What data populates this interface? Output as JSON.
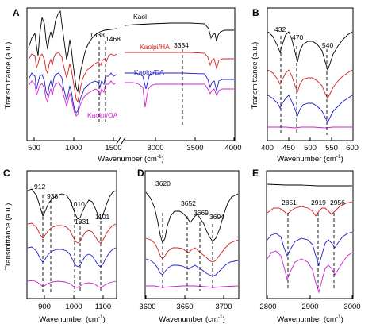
{
  "chart_data": [
    {
      "panel": "A",
      "type": "line",
      "ylabel": "Transmittance (a.u.)",
      "xlabel_main": "Wavenumber (cm",
      "xlabel_sup": "-1",
      "xlabel_close": ")",
      "x_ticks_left": [
        "500",
        "1000",
        "1500"
      ],
      "x_ticks_right": [
        "3000",
        "3500",
        "4000"
      ],
      "axis_break": true,
      "peaks": [
        {
          "x": 1388,
          "label": "1388"
        },
        {
          "x": 1468,
          "label": "1468"
        },
        {
          "x": 3334,
          "label": "3334"
        }
      ],
      "series": [
        {
          "name": "Kaol",
          "color": "#000000"
        },
        {
          "name": "Kaolpi/HA",
          "color": "#d42020"
        },
        {
          "name": "Kaolpi/DA",
          "color": "#2020c8"
        },
        {
          "name": "Kaolpi/OA",
          "color": "#d020d0"
        }
      ]
    },
    {
      "panel": "B",
      "type": "line",
      "xlim": [
        400,
        600
      ],
      "ylabel": "Transmittance (a.u.)",
      "xlabel_main": "Wavenumber (cm",
      "xlabel_sup": "-1",
      "xlabel_close": ")",
      "x_ticks": [
        "400",
        "450",
        "500",
        "550",
        "600"
      ],
      "peaks": [
        {
          "x": 432,
          "label": "432"
        },
        {
          "x": 470,
          "label": "470"
        },
        {
          "x": 540,
          "label": "540"
        }
      ]
    },
    {
      "panel": "C",
      "type": "line",
      "xlim": [
        850,
        1150
      ],
      "ylabel": "Transmittance (a.u.)",
      "xlabel_main": "Wavenumber (cm",
      "xlabel_sup": "-1",
      "xlabel_close": ")",
      "x_ticks": [
        "900",
        "1000",
        "1100"
      ],
      "peaks": [
        {
          "x": 912,
          "label": "912"
        },
        {
          "x": 938,
          "label": "938"
        },
        {
          "x": 1010,
          "label": "1010"
        },
        {
          "x": 1031,
          "label": "1031"
        },
        {
          "x": 1101,
          "label": "1101"
        }
      ]
    },
    {
      "panel": "D",
      "type": "line",
      "xlim": [
        3600,
        3720
      ],
      "xlabel_main": "Wavenumber (cm",
      "xlabel_sup": "-1",
      "xlabel_close": ")",
      "x_ticks": [
        "3600",
        "3650",
        "3700"
      ],
      "peaks": [
        {
          "x": 3620,
          "label": "3620"
        },
        {
          "x": 3652,
          "label": "3652"
        },
        {
          "x": 3669,
          "label": "3669"
        },
        {
          "x": 3694,
          "label": "3694"
        }
      ]
    },
    {
      "panel": "E",
      "type": "line",
      "xlim": [
        2800,
        3000
      ],
      "xlabel_main": "Wavenumber (cm",
      "xlabel_sup": "-1",
      "xlabel_close": ")",
      "x_ticks": [
        "2800",
        "2900",
        "3000"
      ],
      "peaks": [
        {
          "x": 2851,
          "label": "2851"
        },
        {
          "x": 2919,
          "label": "2919"
        },
        {
          "x": 2956,
          "label": "2956"
        }
      ]
    }
  ]
}
